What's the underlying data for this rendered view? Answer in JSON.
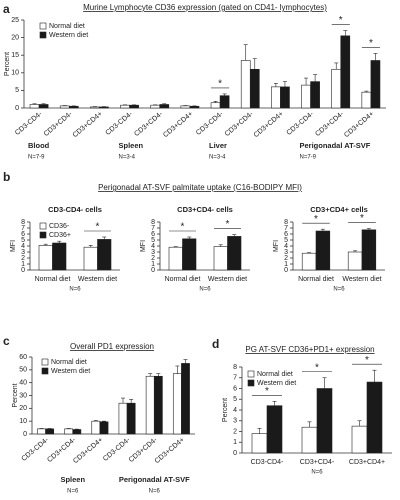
{
  "chart_data": [
    {
      "type": "bar",
      "panel": "a",
      "title": "Murine Lymphocyte CD36 expression  (gated on CD41- lymphocytes)",
      "ylabel": "Percent",
      "categories": [
        "CD3-CD4-",
        "CD3+CD4-",
        "CD3+CD4+",
        "CD3-CD4-",
        "CD3+CD4-",
        "CD3+CD4+",
        "CD3-CD4-",
        "CD3+CD4-",
        "CD3+CD4+",
        "CD3-CD4-",
        "CD3+CD4-",
        "CD3+CD4+"
      ],
      "groups": [
        {
          "label": "Blood",
          "n": "N=7-9"
        },
        {
          "label": "Spleen",
          "n": "N=3-4"
        },
        {
          "label": "Liver",
          "n": "N=3-4"
        },
        {
          "label": "Perigonadal AT-SVF",
          "n": "N=7-9"
        }
      ],
      "series": [
        {
          "name": "Normal diet",
          "color": "#ffffff",
          "values": [
            1.0,
            0.6,
            0.3,
            0.8,
            0.8,
            0.6,
            1.5,
            13.5,
            6.0,
            6.5,
            11.0,
            4.5
          ],
          "errors": [
            0.2,
            0.1,
            0.1,
            0.1,
            0.1,
            0.1,
            0.4,
            4.5,
            1.0,
            2.0,
            1.8,
            0.3
          ]
        },
        {
          "name": "Western diet",
          "color": "#1a1a1a",
          "values": [
            1.0,
            0.5,
            0.3,
            0.8,
            1.0,
            0.5,
            3.5,
            11.0,
            6.0,
            7.5,
            20.5,
            13.5
          ],
          "errors": [
            0.2,
            0.1,
            0.1,
            0.1,
            0.2,
            0.1,
            0.5,
            3.0,
            1.5,
            2.0,
            1.5,
            2.0
          ]
        }
      ],
      "ylim": [
        0,
        25
      ],
      "yticks": [
        0,
        5,
        10,
        15,
        20,
        25
      ],
      "annotations": [
        "*",
        "*",
        "*"
      ]
    },
    {
      "type": "bar",
      "panel": "b",
      "title": "Perigonadal AT-SVF palmitate uptake (C16-BODIPY MFI)",
      "subtitle": "CD3-CD4- cells",
      "ylabel": "MFI",
      "categories": [
        "Normal diet",
        "Western diet"
      ],
      "note": "N=6",
      "series": [
        {
          "name": "CD36-",
          "color": "#ffffff",
          "values": [
            4.1,
            3.8
          ],
          "errors": [
            0.2,
            0.3
          ]
        },
        {
          "name": "CD36+",
          "color": "#1a1a1a",
          "values": [
            4.5,
            5.1
          ],
          "errors": [
            0.3,
            0.4
          ]
        }
      ],
      "ylim": [
        0,
        8
      ],
      "yticks": [
        0,
        1,
        2,
        3,
        4,
        5,
        6,
        7,
        8
      ],
      "annotations": [
        "*"
      ]
    },
    {
      "type": "bar",
      "subtitle": "CD3+CD4- cells",
      "ylabel": "MFI",
      "categories": [
        "Normal diet",
        "Western diet"
      ],
      "note": "N=6",
      "series": [
        {
          "color": "#ffffff",
          "values": [
            3.8,
            3.9
          ],
          "errors": [
            0.1,
            0.3
          ]
        },
        {
          "color": "#1a1a1a",
          "values": [
            5.2,
            5.6
          ],
          "errors": [
            0.3,
            0.3
          ]
        }
      ],
      "ylim": [
        0,
        8
      ],
      "yticks": [
        0,
        1,
        2,
        3,
        4,
        5,
        6,
        7,
        8
      ],
      "annotations": [
        "*",
        "*"
      ]
    },
    {
      "type": "bar",
      "subtitle": "CD3+CD4+ cells",
      "ylabel": "MFI",
      "categories": [
        "Normal diet",
        "Western diet"
      ],
      "note": "N=6",
      "series": [
        {
          "color": "#ffffff",
          "values": [
            2.8,
            3.0
          ],
          "errors": [
            0.1,
            0.2
          ]
        },
        {
          "color": "#1a1a1a",
          "values": [
            6.5,
            6.7
          ],
          "errors": [
            0.3,
            0.2
          ]
        }
      ],
      "ylim": [
        0,
        8
      ],
      "yticks": [
        0,
        1,
        2,
        3,
        4,
        5,
        6,
        7,
        8
      ],
      "annotations": [
        "*",
        "*"
      ]
    },
    {
      "type": "bar",
      "panel": "c",
      "title": "Overall PD1 expression",
      "ylabel": "Percent",
      "categories": [
        "CD3-CD4-",
        "CD3+CD4-",
        "CD3+CD4+",
        "CD3-CD4-",
        "CD3+CD4-",
        "CD3+CD4+"
      ],
      "groups": [
        {
          "label": "Spleen",
          "n": "N=6"
        },
        {
          "label": "Perigonadal AT-SVF",
          "n": "N=6"
        }
      ],
      "series": [
        {
          "name": "Normal diet",
          "color": "#ffffff",
          "values": [
            4,
            4,
            10,
            24,
            45,
            47
          ],
          "errors": [
            0.3,
            0.3,
            0.5,
            4,
            2,
            6
          ]
        },
        {
          "name": "Western diet",
          "color": "#1a1a1a",
          "values": [
            4,
            3.5,
            9.5,
            24,
            45,
            55
          ],
          "errors": [
            0.3,
            0.3,
            0.5,
            3,
            2,
            3
          ]
        }
      ],
      "ylim": [
        0,
        60
      ],
      "yticks": [
        0,
        10,
        20,
        30,
        40,
        50,
        60
      ]
    },
    {
      "type": "bar",
      "panel": "d",
      "title": "PG AT-SVF CD36+PD1+ expression",
      "ylabel": "Percent",
      "categories": [
        "CD3-CD4-",
        "CD3+CD4-",
        "CD3+CD4+"
      ],
      "note": "N=6",
      "series": [
        {
          "name": "Normal diet",
          "color": "#ffffff",
          "values": [
            1.8,
            2.4,
            2.5
          ],
          "errors": [
            0.5,
            0.5,
            0.5
          ]
        },
        {
          "name": "Western diet",
          "color": "#1a1a1a",
          "values": [
            4.4,
            6.0,
            6.6
          ],
          "errors": [
            0.4,
            1.0,
            1.1
          ]
        }
      ],
      "ylim": [
        0,
        8
      ],
      "yticks": [
        0,
        1,
        2,
        3,
        4,
        5,
        6,
        7,
        8
      ],
      "annotations": [
        "*",
        "*",
        "*"
      ]
    }
  ]
}
